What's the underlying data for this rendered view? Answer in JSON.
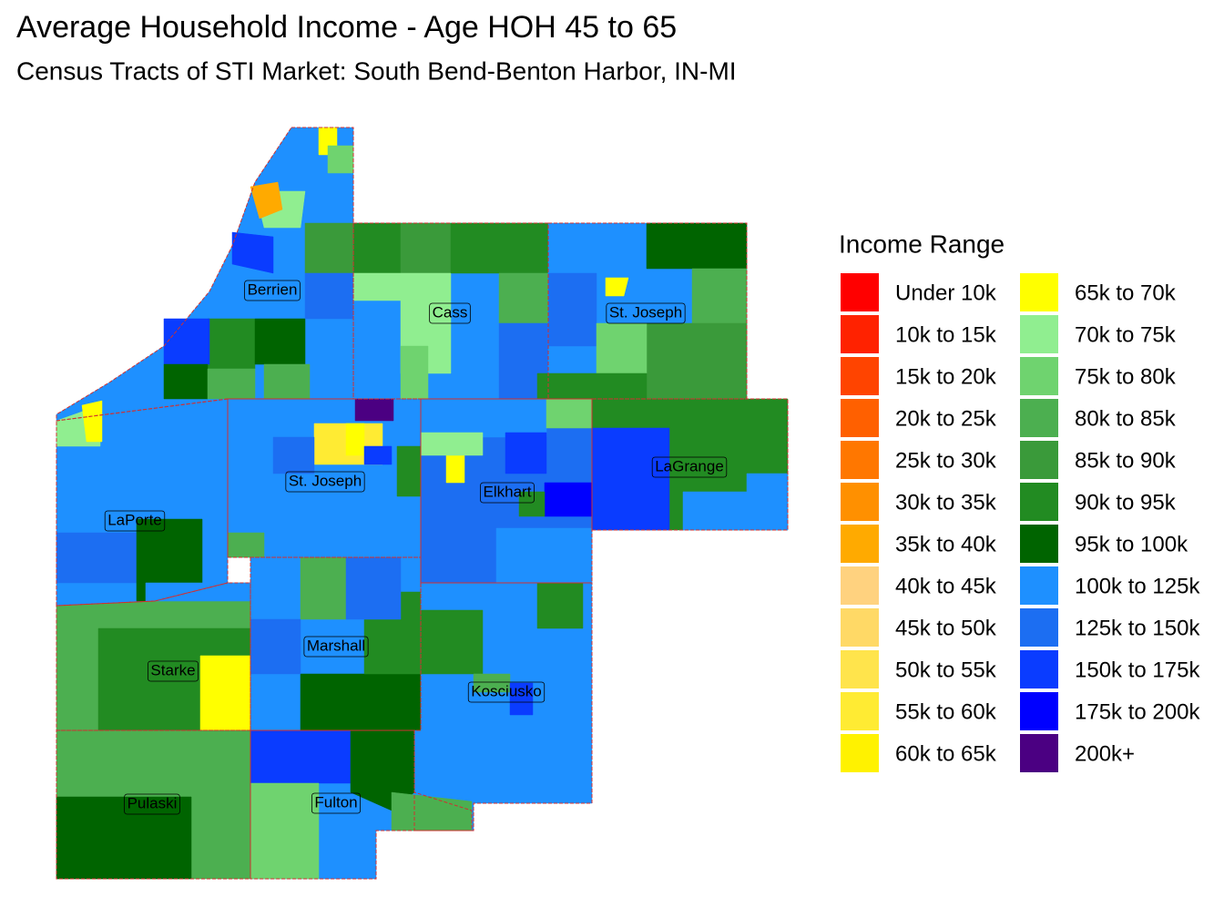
{
  "header": {
    "title": "Average Household Income - Age HOH 45 to 65",
    "subtitle": "Census Tracts of STI Market: South Bend-Benton Harbor, IN-MI"
  },
  "legend": {
    "title": "Income Range",
    "items": [
      {
        "label": "Under 10k",
        "color": "#ff0000"
      },
      {
        "label": "10k to 15k",
        "color": "#ff2200"
      },
      {
        "label": "15k to 20k",
        "color": "#ff4400"
      },
      {
        "label": "20k to 25k",
        "color": "#ff6000"
      },
      {
        "label": "25k to 30k",
        "color": "#ff7700"
      },
      {
        "label": "30k to 35k",
        "color": "#ff9000"
      },
      {
        "label": "35k to 40k",
        "color": "#ffaa00"
      },
      {
        "label": "40k to 45k",
        "color": "#ffd27f"
      },
      {
        "label": "45k to 50k",
        "color": "#ffd966"
      },
      {
        "label": "50k to 55k",
        "color": "#ffe44c"
      },
      {
        "label": "55k to 60k",
        "color": "#ffeb33"
      },
      {
        "label": "60k to 65k",
        "color": "#fff200"
      },
      {
        "label": "65k to 70k",
        "color": "#ffff00"
      },
      {
        "label": "70k to 75k",
        "color": "#90ee90"
      },
      {
        "label": "75k to 80k",
        "color": "#6fd36f"
      },
      {
        "label": "80k to 85k",
        "color": "#4caf50"
      },
      {
        "label": "85k to 90k",
        "color": "#3a9a3a"
      },
      {
        "label": "90k to 95k",
        "color": "#228b22"
      },
      {
        "label": "95k to 100k",
        "color": "#006400"
      },
      {
        "label": "100k to 125k",
        "color": "#1e90ff"
      },
      {
        "label": "125k to 150k",
        "color": "#1c6ef2"
      },
      {
        "label": "150k to 175k",
        "color": "#0a3cff"
      },
      {
        "label": "175k to 200k",
        "color": "#0000ff"
      },
      {
        "label": "200k+",
        "color": "#4b0082"
      }
    ]
  },
  "map": {
    "labels": [
      "Berrien",
      "Cass",
      "St. Joseph",
      "St. Joseph",
      "Elkhart",
      "LaGrange",
      "LaPorte",
      "Starke",
      "Marshall",
      "Kosciusko",
      "Pulaski",
      "Fulton"
    ]
  }
}
